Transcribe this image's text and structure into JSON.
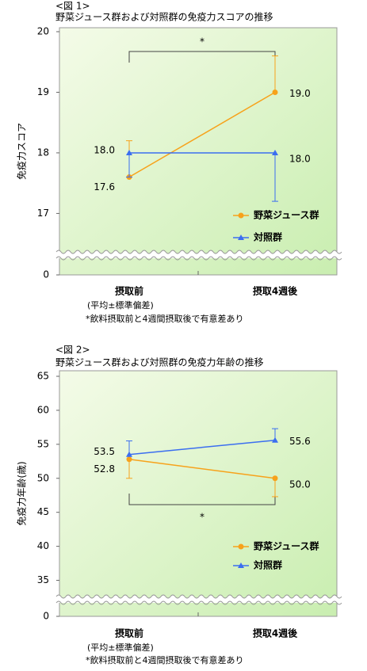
{
  "chart_data": [
    {
      "type": "line",
      "label": "<図 1>",
      "title": "野菜ジュース群および対照群の免疫力スコアの推移",
      "y_label": "免疫力スコア",
      "categories": [
        "摂取前",
        "摂取4週後"
      ],
      "series": [
        {
          "name": "野菜ジュース群",
          "color": "#f7a21b",
          "marker": "circle",
          "values": [
            17.6,
            19.0
          ],
          "value_labels": [
            "17.6",
            "19.0"
          ],
          "errors": [
            0.6,
            0.6
          ],
          "error_side": "up"
        },
        {
          "name": "対照群",
          "color": "#3b6ef0",
          "marker": "triangle",
          "values": [
            18.0,
            18.0
          ],
          "value_labels": [
            "18.0",
            "18.0"
          ],
          "errors": [
            0.4,
            0.8
          ],
          "error_side": "down"
        }
      ],
      "ylim": [
        0,
        20
      ],
      "yticks": [
        0,
        17,
        18,
        19,
        20
      ],
      "y_break": [
        0,
        16.6
      ],
      "significance": "*",
      "significance_side": "top",
      "notes": [
        "(平均±標準偏差)",
        "*飲料摂取前と4週間摂取後で有意差あり"
      ]
    },
    {
      "type": "line",
      "label": "<図 2>",
      "title": "野菜ジュース群および対照群の免疫力年齢の推移",
      "y_label": "免疫力年齢(歳)",
      "categories": [
        "摂取前",
        "摂取4週後"
      ],
      "series": [
        {
          "name": "野菜ジュース群",
          "color": "#f7a21b",
          "marker": "circle",
          "values": [
            52.8,
            50.0
          ],
          "value_labels": [
            "52.8",
            "50.0"
          ],
          "errors": [
            2.8,
            2.7
          ],
          "error_side": "down"
        },
        {
          "name": "対照群",
          "color": "#3b6ef0",
          "marker": "triangle",
          "values": [
            53.5,
            55.6
          ],
          "value_labels": [
            "53.5",
            "55.6"
          ],
          "errors": [
            2.0,
            1.7
          ],
          "error_side": "up"
        }
      ],
      "ylim": [
        0,
        65
      ],
      "yticks": [
        0,
        35,
        40,
        45,
        50,
        55,
        60,
        65
      ],
      "y_break": [
        0,
        32.5
      ],
      "significance": "*",
      "significance_side": "bottom",
      "notes": [
        "(平均±標準偏差)",
        "*飲料摂取前と4週間摂取後で有意差あり"
      ]
    }
  ]
}
